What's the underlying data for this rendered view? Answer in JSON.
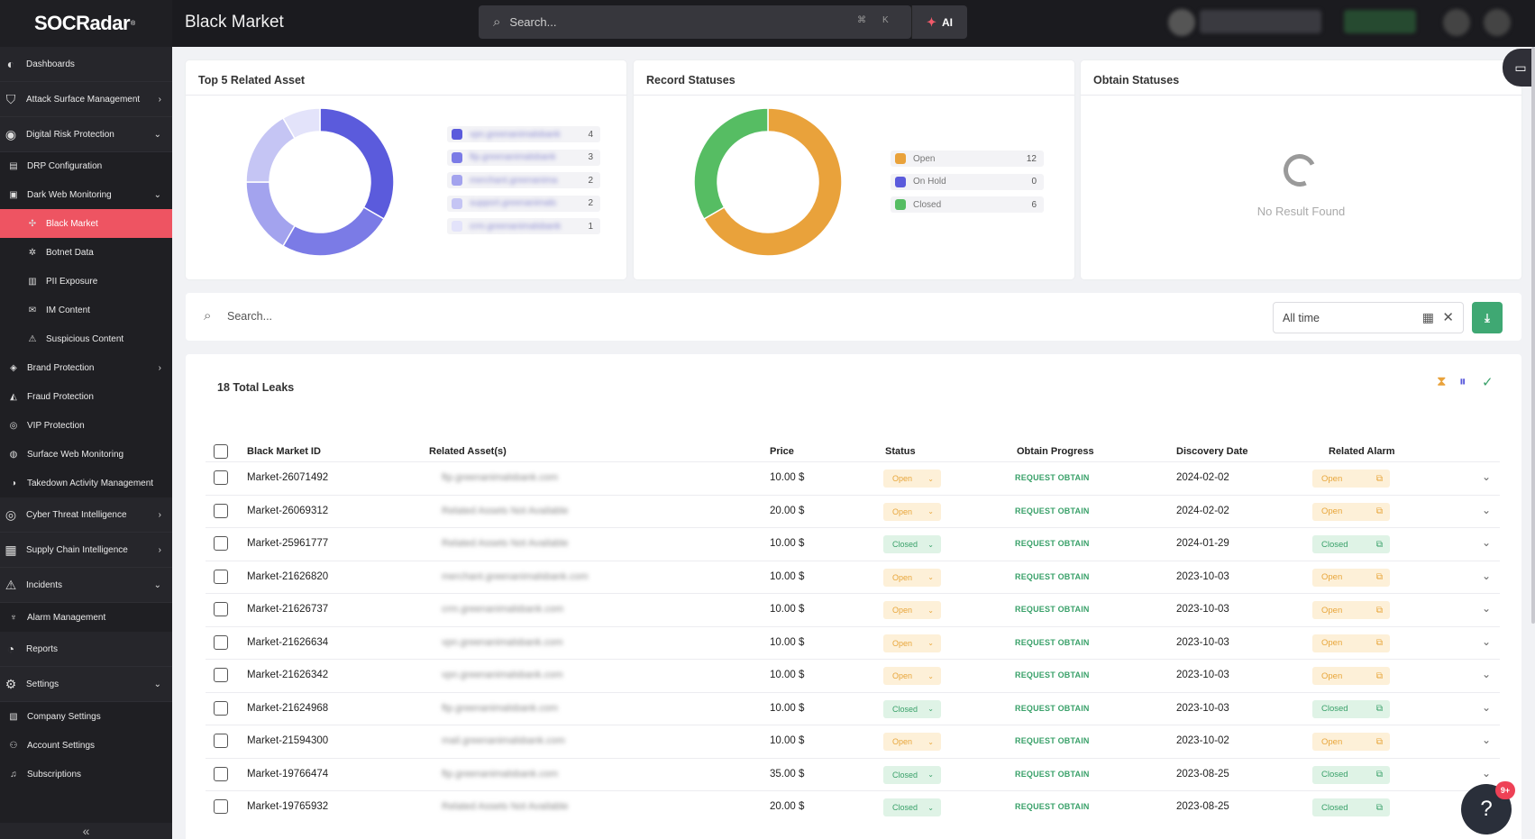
{
  "app": {
    "logo": "SOCRadar",
    "logo_mark": "®",
    "page_title": "Black Market"
  },
  "header": {
    "search_placeholder": "Search...",
    "kbd1": "⌘",
    "kbd2": "K",
    "ai_label": "AI"
  },
  "sidebar": {
    "items": [
      {
        "label": "Dashboards",
        "icon": "dashboard-icon",
        "level": "top"
      },
      {
        "label": "Attack Surface Management",
        "icon": "shield-scan-icon",
        "level": "top",
        "chevron": "›"
      },
      {
        "label": "Digital Risk Protection",
        "icon": "fingerprint-icon",
        "level": "top",
        "chevron": "⌄"
      },
      {
        "label": "DRP Configuration",
        "icon": "config-icon",
        "level": "sub"
      },
      {
        "label": "Dark Web Monitoring",
        "icon": "darkweb-icon",
        "level": "sub",
        "chevron": "⌄"
      },
      {
        "label": "Black Market",
        "icon": "market-icon",
        "level": "subsub",
        "active": true
      },
      {
        "label": "Botnet Data",
        "icon": "bug-icon",
        "level": "subsub"
      },
      {
        "label": "PII Exposure",
        "icon": "id-card-icon",
        "level": "subsub"
      },
      {
        "label": "IM Content",
        "icon": "message-icon",
        "level": "subsub"
      },
      {
        "label": "Suspicious Content",
        "icon": "warning-icon",
        "level": "subsub"
      },
      {
        "label": "Brand Protection",
        "icon": "brand-icon",
        "level": "sub",
        "chevron": "›"
      },
      {
        "label": "Fraud Protection",
        "icon": "fraud-icon",
        "level": "sub"
      },
      {
        "label": "VIP Protection",
        "icon": "vip-icon",
        "level": "sub"
      },
      {
        "label": "Surface Web Monitoring",
        "icon": "globe-icon",
        "level": "sub"
      },
      {
        "label": "Takedown Activity Management",
        "icon": "takedown-icon",
        "level": "sub"
      },
      {
        "label": "Cyber Threat Intelligence",
        "icon": "radar-icon",
        "level": "top",
        "chevron": "›"
      },
      {
        "label": "Supply Chain Intelligence",
        "icon": "supply-chain-icon",
        "level": "top",
        "chevron": "›"
      },
      {
        "label": "Incidents",
        "icon": "incident-icon",
        "level": "top",
        "chevron": "⌄"
      },
      {
        "label": "Alarm Management",
        "icon": "alarm-icon",
        "level": "sub"
      },
      {
        "label": "Reports",
        "icon": "report-icon",
        "level": "top"
      },
      {
        "label": "Settings",
        "icon": "gear-icon",
        "level": "top",
        "chevron": "⌄"
      },
      {
        "label": "Company Settings",
        "icon": "company-icon",
        "level": "sub"
      },
      {
        "label": "Account Settings",
        "icon": "user-icon",
        "level": "sub"
      },
      {
        "label": "Subscriptions",
        "icon": "bell-icon",
        "level": "sub"
      }
    ],
    "collapse": "«"
  },
  "cards": {
    "top_assets": {
      "title": "Top 5 Related Asset",
      "legend": [
        {
          "label": "vpn.greenanimalsbank",
          "value": "4",
          "color": "#5b5bdc"
        },
        {
          "label": "ftp.greenanimalsbank",
          "value": "3",
          "color": "#7b7be6"
        },
        {
          "label": "merchant.greenanima",
          "value": "2",
          "color": "#a3a3ee"
        },
        {
          "label": "support.greenanimals",
          "value": "2",
          "color": "#c5c5f4"
        },
        {
          "label": "crm.greenanimalsbank",
          "value": "1",
          "color": "#e3e3fa"
        }
      ]
    },
    "record_statuses": {
      "title": "Record Statuses",
      "legend": [
        {
          "label": "Open",
          "value": "12",
          "color": "#e9a23b"
        },
        {
          "label": "On Hold",
          "value": "0",
          "color": "#5b5bdc"
        },
        {
          "label": "Closed",
          "value": "6",
          "color": "#56bd63"
        }
      ]
    },
    "obtain_statuses": {
      "title": "Obtain Statuses",
      "empty_text": "No Result Found"
    }
  },
  "filter": {
    "search_placeholder": "Search...",
    "date_range": "All time",
    "download_icon": "download-icon"
  },
  "table": {
    "total": "18 Total Leaks",
    "headers": [
      "Black Market ID",
      "Related Asset(s)",
      "Price",
      "Status",
      "Obtain Progress",
      "Discovery Date",
      "Related Alarm"
    ],
    "rows": [
      {
        "id": "Market-26071492",
        "asset": "ftp.greenanimalsbank.com",
        "price": "10.00 $",
        "status": "Open",
        "progress": "REQUEST OBTAIN",
        "date": "2024-02-02",
        "alarm": "Open"
      },
      {
        "id": "Market-26069312",
        "asset": "Related Assets Not Available",
        "price": "20.00 $",
        "status": "Open",
        "progress": "REQUEST OBTAIN",
        "date": "2024-02-02",
        "alarm": "Open"
      },
      {
        "id": "Market-25961777",
        "asset": "Related Assets Not Available",
        "price": "10.00 $",
        "status": "Closed",
        "progress": "REQUEST OBTAIN",
        "date": "2024-01-29",
        "alarm": "Closed"
      },
      {
        "id": "Market-21626820",
        "asset": "merchant.greenanimalsbank.com",
        "price": "10.00 $",
        "status": "Open",
        "progress": "REQUEST OBTAIN",
        "date": "2023-10-03",
        "alarm": "Open"
      },
      {
        "id": "Market-21626737",
        "asset": "crm.greenanimalsbank.com",
        "price": "10.00 $",
        "status": "Open",
        "progress": "REQUEST OBTAIN",
        "date": "2023-10-03",
        "alarm": "Open"
      },
      {
        "id": "Market-21626634",
        "asset": "vpn.greenanimalsbank.com",
        "price": "10.00 $",
        "status": "Open",
        "progress": "REQUEST OBTAIN",
        "date": "2023-10-03",
        "alarm": "Open"
      },
      {
        "id": "Market-21626342",
        "asset": "vpn.greenanimalsbank.com",
        "price": "10.00 $",
        "status": "Open",
        "progress": "REQUEST OBTAIN",
        "date": "2023-10-03",
        "alarm": "Open"
      },
      {
        "id": "Market-21624968",
        "asset": "ftp.greenanimalsbank.com",
        "price": "10.00 $",
        "status": "Closed",
        "progress": "REQUEST OBTAIN",
        "date": "2023-10-03",
        "alarm": "Closed"
      },
      {
        "id": "Market-21594300",
        "asset": "mail.greenanimalsbank.com",
        "price": "10.00 $",
        "status": "Open",
        "progress": "REQUEST OBTAIN",
        "date": "2023-10-02",
        "alarm": "Open"
      },
      {
        "id": "Market-19766474",
        "asset": "ftp.greenanimalsbank.com",
        "price": "35.00 $",
        "status": "Closed",
        "progress": "REQUEST OBTAIN",
        "date": "2023-08-25",
        "alarm": "Closed"
      },
      {
        "id": "Market-19765932",
        "asset": "Related Assets Not Available",
        "price": "20.00 $",
        "status": "Closed",
        "progress": "REQUEST OBTAIN",
        "date": "2023-08-25",
        "alarm": "Closed"
      }
    ]
  },
  "help_badge": "9+"
}
